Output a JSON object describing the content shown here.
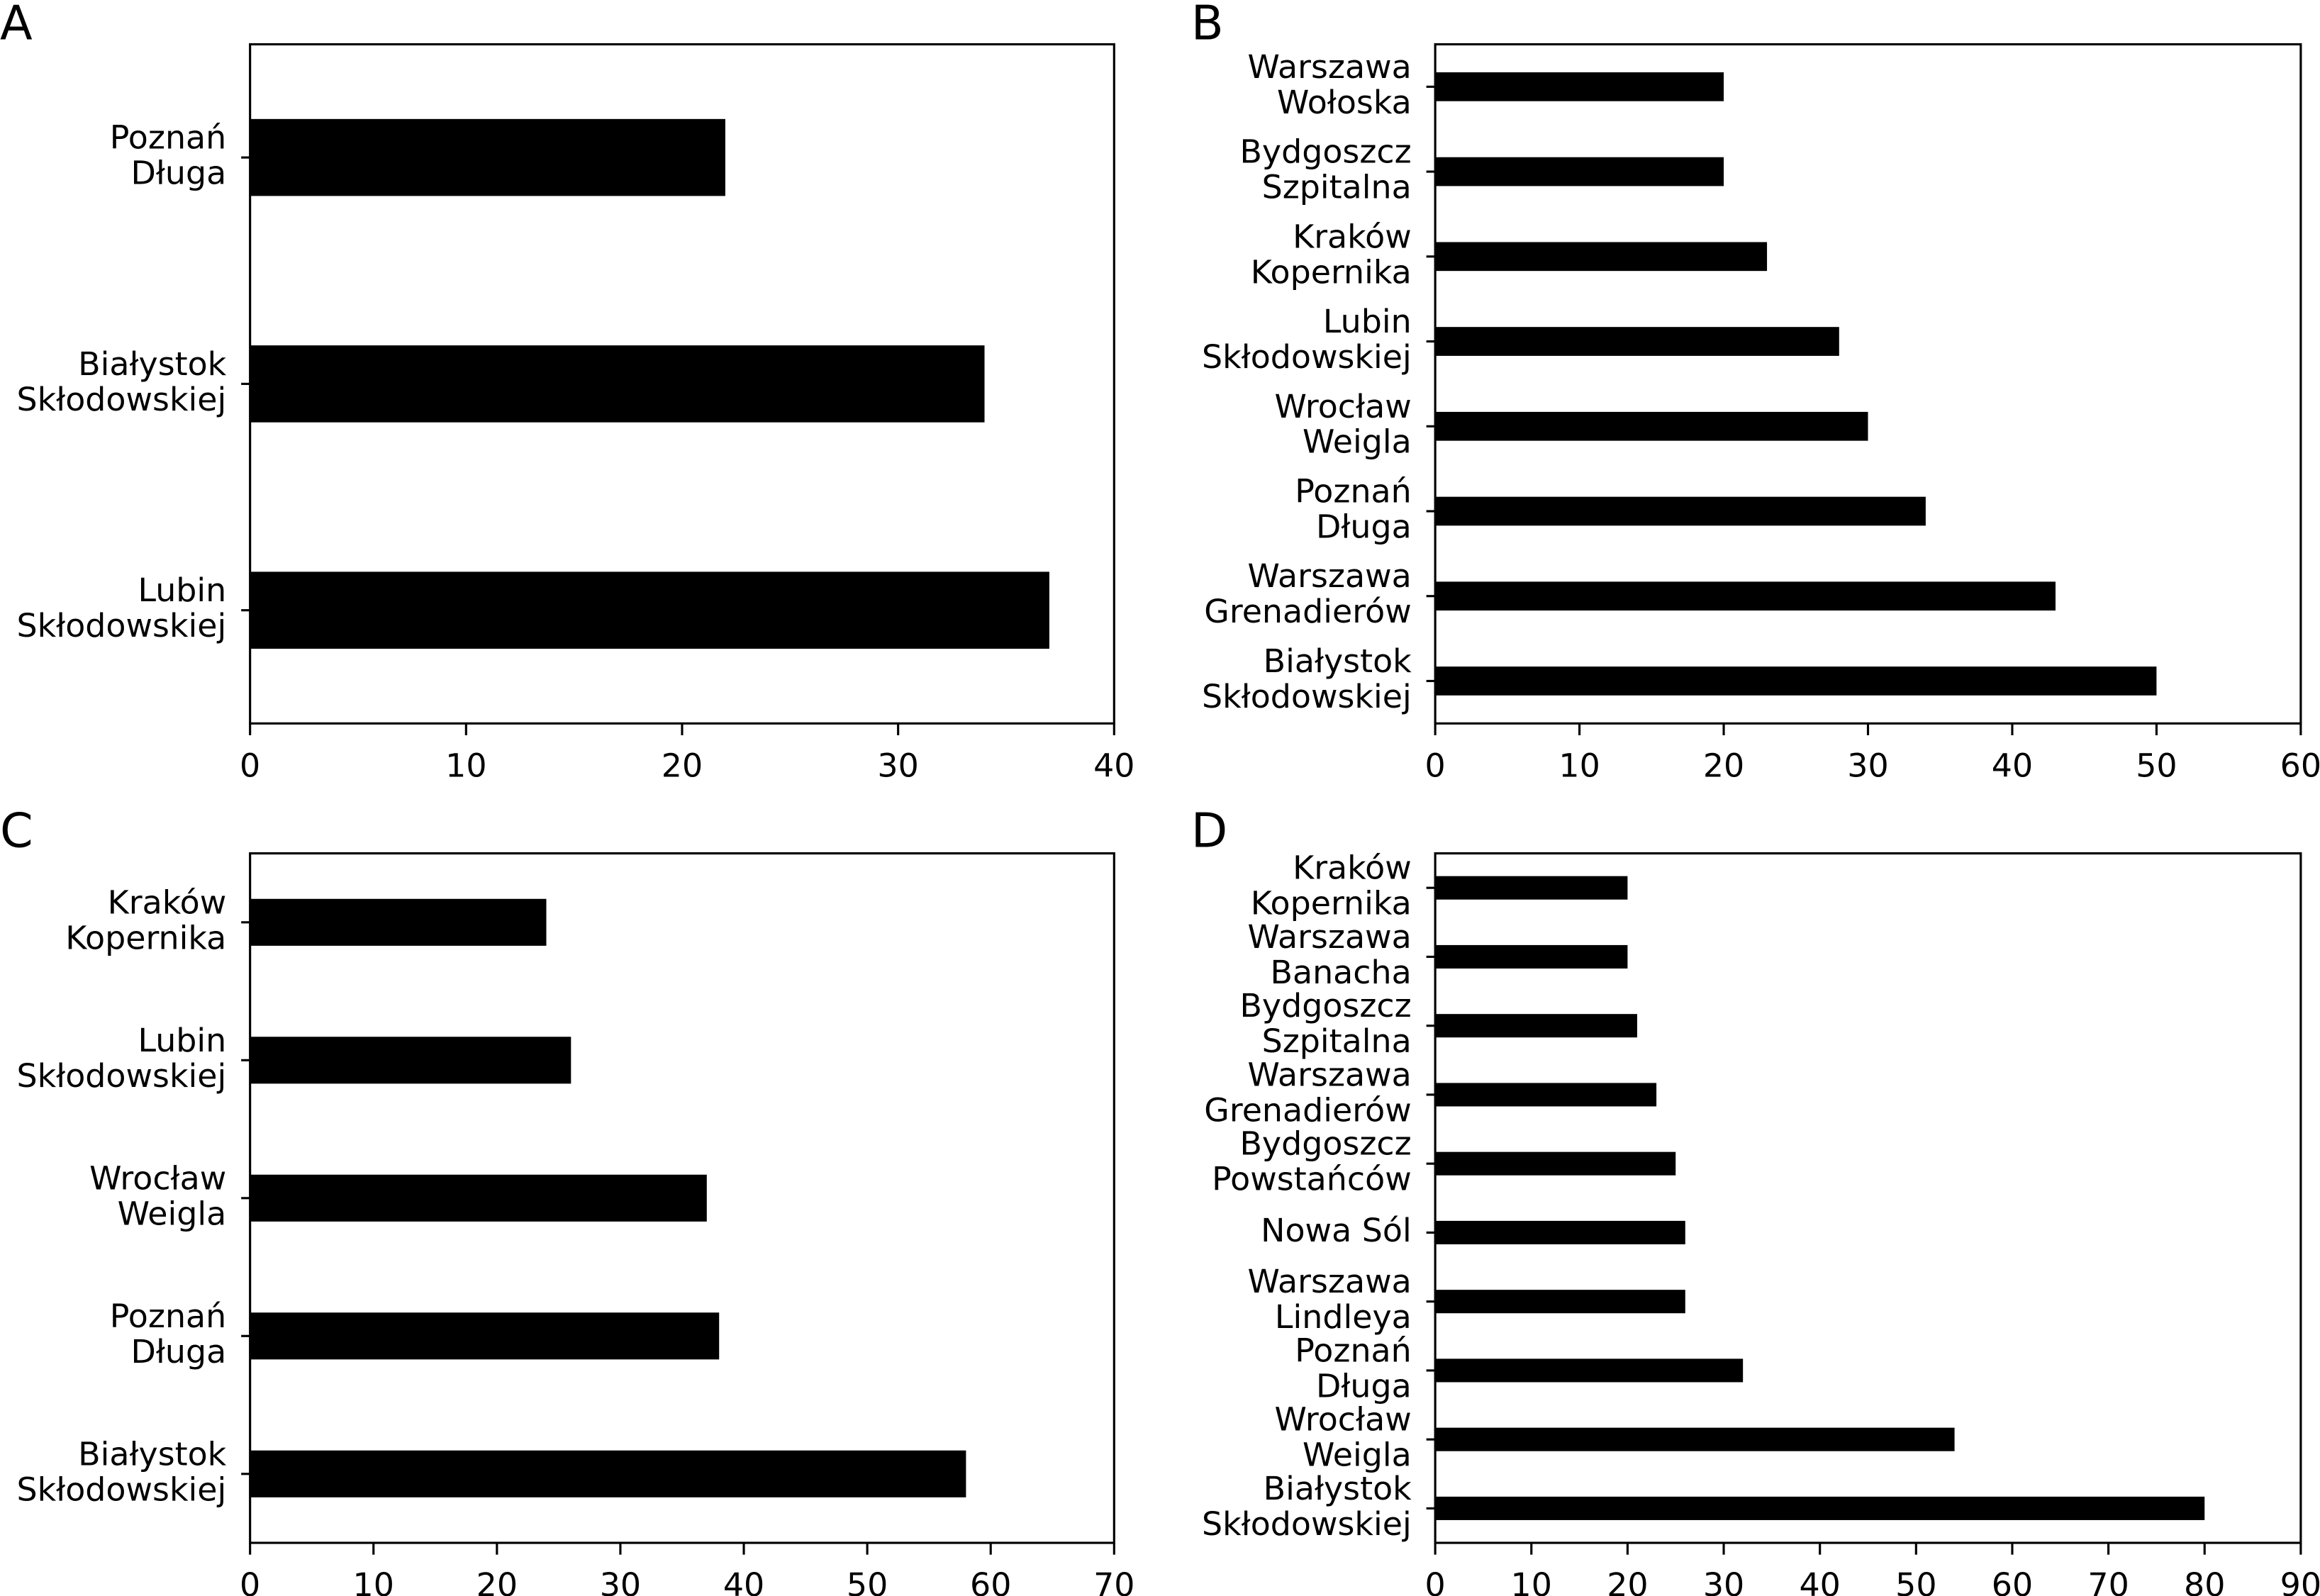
{
  "chart_data": [
    {
      "type": "barh",
      "label": "A",
      "categories": [
        [
          "Poznań",
          "Długa"
        ],
        [
          "Białystok",
          "Skłodowskiej"
        ],
        [
          "Lubin",
          "Skłodowskiej"
        ]
      ],
      "values": [
        22,
        34,
        37
      ],
      "color": "#000000",
      "xlim": [
        0,
        40
      ],
      "xticks": [
        0,
        10,
        20,
        30,
        40
      ]
    },
    {
      "type": "barh",
      "label": "B",
      "categories": [
        [
          "Warszawa",
          "Wołoska"
        ],
        [
          "Bydgoszcz",
          "Szpitalna"
        ],
        [
          "Kraków",
          "Kopernika"
        ],
        [
          "Lubin",
          "Skłodowskiej"
        ],
        [
          "Wrocław",
          "Weigla"
        ],
        [
          "Poznań",
          "Długa"
        ],
        [
          "Warszawa",
          "Grenadierów"
        ],
        [
          "Białystok",
          "Skłodowskiej"
        ]
      ],
      "values": [
        20,
        20,
        23,
        28,
        30,
        34,
        43,
        50
      ],
      "color": "#000000",
      "xlim": [
        0,
        60
      ],
      "xticks": [
        0,
        10,
        20,
        30,
        40,
        50,
        60
      ]
    },
    {
      "type": "barh",
      "label": "C",
      "categories": [
        [
          "Kraków",
          "Kopernika"
        ],
        [
          "Lubin",
          "Skłodowskiej"
        ],
        [
          "Wrocław",
          "Weigla"
        ],
        [
          "Poznań",
          "Długa"
        ],
        [
          "Białystok",
          "Skłodowskiej"
        ]
      ],
      "values": [
        24,
        26,
        37,
        38,
        58
      ],
      "color": "#000000",
      "xlim": [
        0,
        70
      ],
      "xticks": [
        0,
        10,
        20,
        30,
        40,
        50,
        60,
        70
      ]
    },
    {
      "type": "barh",
      "label": "D",
      "categories": [
        [
          "Kraków",
          "Kopernika"
        ],
        [
          "Warszawa",
          "Banacha"
        ],
        [
          "Bydgoszcz",
          "Szpitalna"
        ],
        [
          "Warszawa",
          "Grenadierów"
        ],
        [
          "Bydgoszcz",
          "Powstańców"
        ],
        [
          "Nowa Sól"
        ],
        [
          "Warszawa",
          "Lindleya"
        ],
        [
          "Poznań",
          "Długa"
        ],
        [
          "Wrocław",
          "Weigla"
        ],
        [
          "Białystok",
          "Skłodowskiej"
        ]
      ],
      "values": [
        20,
        20,
        21,
        23,
        25,
        26,
        26,
        32,
        54,
        80
      ],
      "color": "#000000",
      "xlim": [
        0,
        90
      ],
      "xticks": [
        0,
        10,
        20,
        30,
        40,
        50,
        60,
        70,
        80,
        90
      ]
    }
  ]
}
